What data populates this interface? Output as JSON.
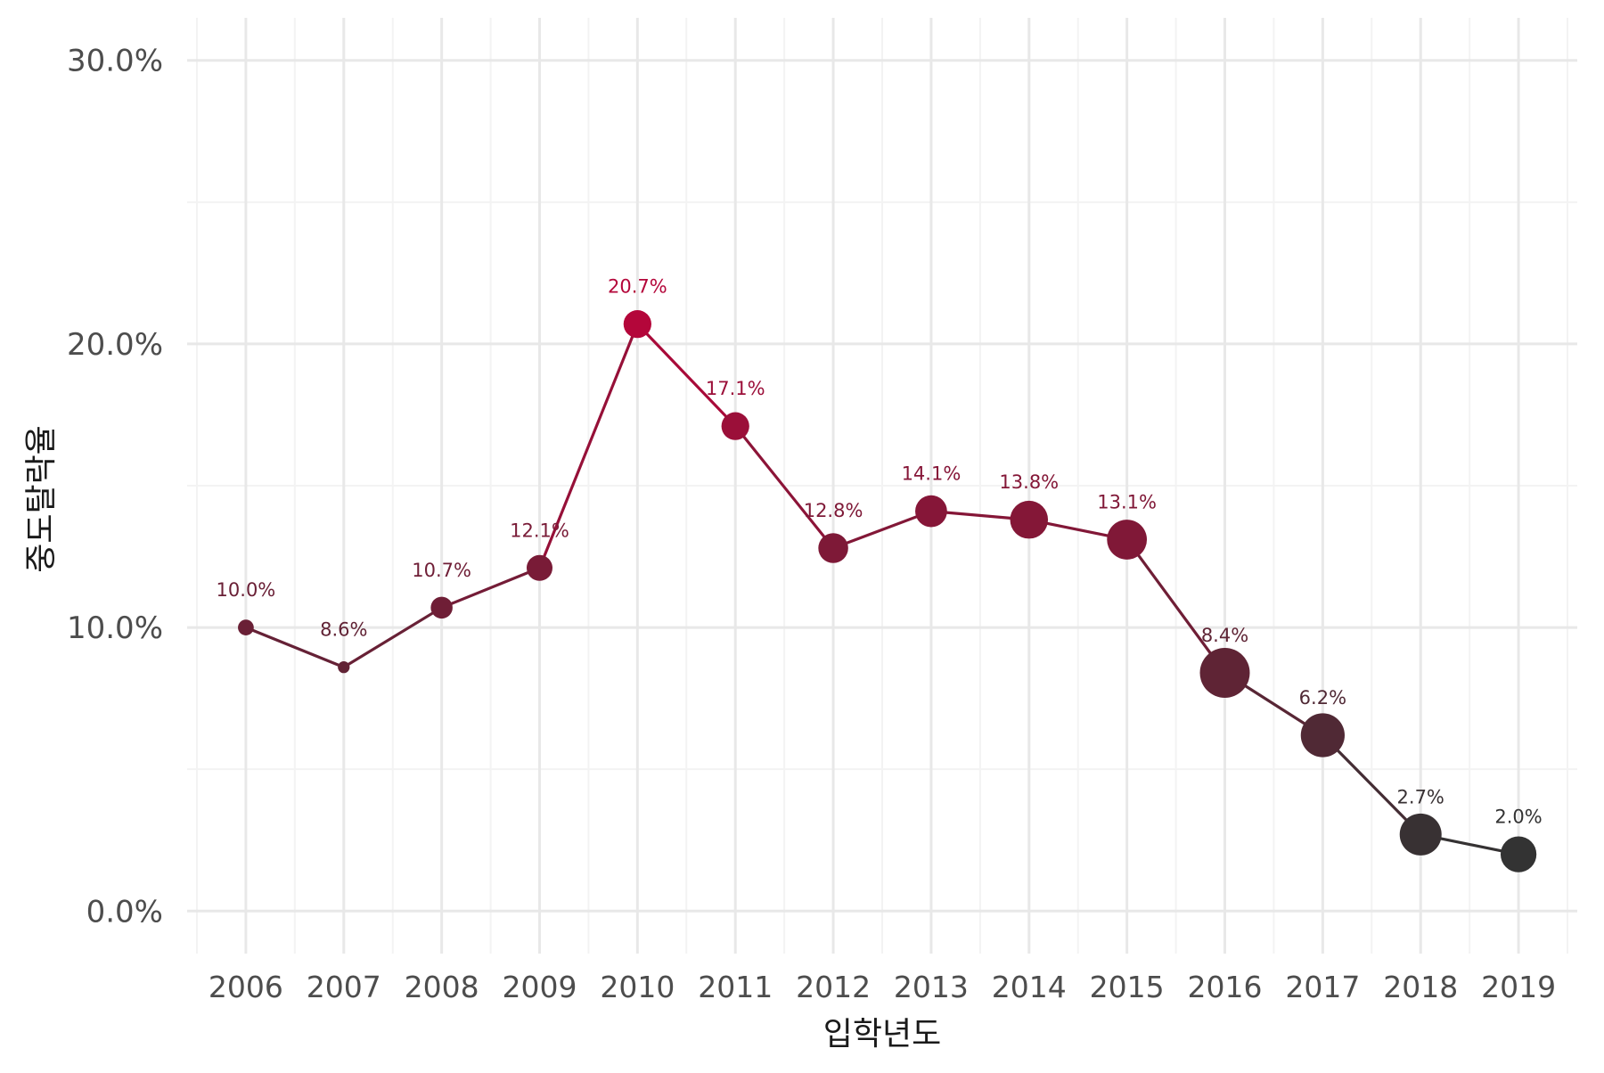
{
  "chart_data": {
    "type": "line",
    "title": "",
    "xlabel": "입학년도",
    "ylabel": "중도탈락율",
    "x": [
      "2006",
      "2007",
      "2008",
      "2009",
      "2010",
      "2011",
      "2012",
      "2013",
      "2014",
      "2015",
      "2016",
      "2017",
      "2018",
      "2019"
    ],
    "values": [
      10.0,
      8.6,
      10.7,
      12.1,
      20.7,
      17.1,
      12.8,
      14.1,
      13.8,
      13.1,
      8.4,
      6.2,
      2.7,
      2.0
    ],
    "labels": [
      "10.0%",
      "8.6%",
      "10.7%",
      "12.1%",
      "20.7%",
      "17.1%",
      "12.8%",
      "14.1%",
      "13.8%",
      "13.1%",
      "8.4%",
      "6.2%",
      "2.7%",
      "2.0%"
    ],
    "point_size_relative": [
      0.15,
      0.05,
      0.3,
      0.4,
      0.45,
      0.45,
      0.5,
      0.55,
      0.7,
      0.75,
      1.0,
      0.85,
      0.8,
      0.65
    ],
    "y_ticks": [
      0,
      10,
      20,
      30
    ],
    "y_tick_labels": [
      "0.0%",
      "10.0%",
      "20.0%",
      "30.0%"
    ],
    "ylim": [
      -1.5,
      31.5
    ],
    "grid": true,
    "legend": "none",
    "colors": {
      "high": "#b4063a",
      "low": "#333333",
      "grid_major": "#e8e8e8",
      "grid_minor": "#f3f3f3"
    }
  }
}
